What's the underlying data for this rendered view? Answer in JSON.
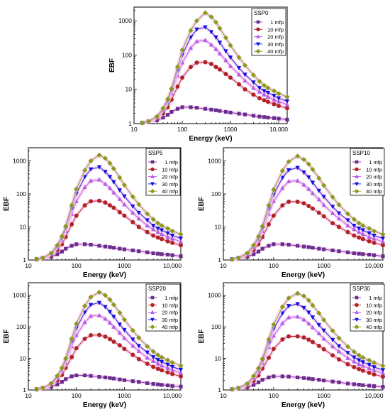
{
  "figure": {
    "background": "#ffffff"
  },
  "common": {
    "type": "line",
    "xlabel": "Energy (keV)",
    "ylabel": "EBF",
    "xscale": "log",
    "yscale": "log",
    "xlim": [
      10,
      15000
    ],
    "ylim": [
      1,
      2500
    ],
    "x_ticks": [
      10,
      100,
      1000,
      10000
    ],
    "x_tick_labels": [
      "10",
      "100",
      "1000",
      "10,000"
    ],
    "y_ticks": [
      1,
      10,
      100,
      1000
    ],
    "y_tick_labels": [
      "1",
      "10",
      "100",
      "1000"
    ],
    "legend_position": "top-right",
    "energies": [
      15,
      20,
      30,
      40,
      50,
      60,
      80,
      100,
      150,
      200,
      300,
      400,
      500,
      600,
      800,
      1000,
      1500,
      2000,
      3000,
      4000,
      5000,
      6000,
      8000,
      10000,
      15000
    ],
    "series_style": [
      {
        "name": "1 mfp",
        "color": "#6a2c8e",
        "marker": "square"
      },
      {
        "name": "10 mfp",
        "color": "#b22222",
        "marker": "circle"
      },
      {
        "name": "20 mfp",
        "color": "#b45ae6",
        "marker": "triangle-up"
      },
      {
        "name": "30 mfp",
        "color": "#1010e0",
        "marker": "triangle-down"
      },
      {
        "name": "40 mfp",
        "color": "#8b9a1a",
        "marker": "diamond"
      }
    ]
  },
  "chart_data": [
    {
      "type": "line",
      "title": "SSP0",
      "xlabel": "Energy (keV)",
      "ylabel": "EBF",
      "x": [
        15,
        20,
        30,
        40,
        50,
        60,
        80,
        100,
        150,
        200,
        300,
        400,
        500,
        600,
        800,
        1000,
        1500,
        2000,
        3000,
        4000,
        5000,
        6000,
        8000,
        10000,
        15000
      ],
      "series": [
        {
          "name": "1 mfp",
          "values": [
            1.05,
            1.1,
            1.25,
            1.5,
            1.8,
            2.2,
            2.7,
            3.0,
            3.0,
            2.9,
            2.7,
            2.55,
            2.45,
            2.35,
            2.2,
            2.1,
            1.95,
            1.85,
            1.7,
            1.6,
            1.55,
            1.5,
            1.45,
            1.4,
            1.3
          ]
        },
        {
          "name": "10 mfp",
          "values": [
            1.05,
            1.15,
            1.4,
            2.0,
            3.0,
            5.0,
            12,
            22,
            45,
            60,
            62,
            55,
            45,
            38,
            28,
            22,
            14,
            10,
            7,
            5.5,
            4.8,
            4.3,
            3.7,
            3.3,
            2.8
          ]
        },
        {
          "name": "20 mfp",
          "values": [
            1.05,
            1.15,
            1.5,
            2.4,
            4.0,
            7.5,
            25,
            60,
            160,
            250,
            270,
            200,
            150,
            110,
            70,
            48,
            27,
            18,
            11,
            8.5,
            7,
            6,
            5,
            4.4,
            3.6
          ]
        },
        {
          "name": "30 mfp",
          "values": [
            1.05,
            1.15,
            1.55,
            2.6,
            4.6,
            9.0,
            35,
            100,
            330,
            560,
            650,
            470,
            330,
            230,
            130,
            85,
            42,
            27,
            16,
            11,
            9,
            8,
            6.5,
            5.5,
            4.5
          ]
        },
        {
          "name": "40 mfp",
          "values": [
            1.05,
            1.15,
            1.6,
            2.8,
            5.2,
            10.5,
            45,
            140,
            520,
            1000,
            1700,
            1300,
            900,
            600,
            320,
            190,
            85,
            50,
            26,
            17,
            13,
            11,
            9,
            7.5,
            6
          ]
        }
      ]
    },
    {
      "type": "line",
      "title": "SSP5",
      "xlabel": "Energy (keV)",
      "ylabel": "EBF",
      "x": [
        15,
        20,
        30,
        40,
        50,
        60,
        80,
        100,
        150,
        200,
        300,
        400,
        500,
        600,
        800,
        1000,
        1500,
        2000,
        3000,
        4000,
        5000,
        6000,
        8000,
        10000,
        15000
      ],
      "series": [
        {
          "name": "1 mfp",
          "values": [
            1.05,
            1.1,
            1.25,
            1.5,
            1.8,
            2.2,
            2.7,
            3.0,
            3.0,
            2.9,
            2.7,
            2.55,
            2.45,
            2.35,
            2.2,
            2.1,
            1.95,
            1.85,
            1.7,
            1.6,
            1.55,
            1.5,
            1.45,
            1.4,
            1.3
          ]
        },
        {
          "name": "10 mfp",
          "values": [
            1.05,
            1.15,
            1.4,
            2.0,
            3.0,
            5.0,
            12,
            22,
            45,
            60,
            62,
            55,
            45,
            38,
            28,
            22,
            14,
            10,
            7,
            5.5,
            4.8,
            4.3,
            3.7,
            3.3,
            2.8
          ]
        },
        {
          "name": "20 mfp",
          "values": [
            1.05,
            1.15,
            1.5,
            2.4,
            4.0,
            7.5,
            25,
            60,
            160,
            250,
            270,
            200,
            150,
            110,
            70,
            48,
            27,
            18,
            11,
            8.5,
            7,
            6,
            5,
            4.4,
            3.6
          ]
        },
        {
          "name": "30 mfp",
          "values": [
            1.05,
            1.15,
            1.55,
            2.6,
            4.6,
            9.0,
            35,
            100,
            330,
            560,
            650,
            470,
            330,
            230,
            130,
            85,
            42,
            27,
            16,
            11,
            9,
            8,
            6.5,
            5.5,
            4.5
          ]
        },
        {
          "name": "40 mfp",
          "values": [
            1.05,
            1.15,
            1.6,
            2.8,
            5.2,
            10.5,
            45,
            140,
            520,
            1000,
            1500,
            1200,
            850,
            580,
            310,
            185,
            82,
            48,
            25,
            17,
            13,
            11,
            9,
            7.5,
            6
          ]
        }
      ]
    },
    {
      "type": "line",
      "title": "SSP10",
      "xlabel": "Energy (keV)",
      "ylabel": "EBF",
      "x": [
        15,
        20,
        30,
        40,
        50,
        60,
        80,
        100,
        150,
        200,
        300,
        400,
        500,
        600,
        800,
        1000,
        1500,
        2000,
        3000,
        4000,
        5000,
        6000,
        8000,
        10000,
        15000
      ],
      "series": [
        {
          "name": "1 mfp",
          "values": [
            1.05,
            1.1,
            1.25,
            1.5,
            1.8,
            2.2,
            2.7,
            3.0,
            3.0,
            2.9,
            2.7,
            2.55,
            2.45,
            2.35,
            2.2,
            2.1,
            1.95,
            1.85,
            1.7,
            1.6,
            1.55,
            1.5,
            1.45,
            1.4,
            1.3
          ]
        },
        {
          "name": "10 mfp",
          "values": [
            1.05,
            1.15,
            1.4,
            2.0,
            3.0,
            5.0,
            12,
            22,
            45,
            58,
            58,
            52,
            43,
            36,
            27,
            21,
            13,
            10,
            7,
            5.5,
            4.8,
            4.3,
            3.7,
            3.3,
            2.8
          ]
        },
        {
          "name": "20 mfp",
          "values": [
            1.05,
            1.15,
            1.5,
            2.4,
            4.0,
            7.5,
            25,
            60,
            150,
            240,
            250,
            190,
            140,
            105,
            68,
            46,
            26,
            18,
            11,
            8.5,
            7,
            6,
            5,
            4.4,
            3.6
          ]
        },
        {
          "name": "30 mfp",
          "values": [
            1.05,
            1.15,
            1.55,
            2.6,
            4.6,
            9.0,
            35,
            95,
            310,
            530,
            620,
            450,
            320,
            220,
            125,
            82,
            41,
            26,
            16,
            11,
            9,
            8,
            6.5,
            5.5,
            4.5
          ]
        },
        {
          "name": "40 mfp",
          "values": [
            1.05,
            1.15,
            1.6,
            2.8,
            5.2,
            10.5,
            45,
            135,
            500,
            950,
            1400,
            1100,
            800,
            550,
            300,
            180,
            80,
            47,
            25,
            17,
            13,
            11,
            9,
            7.5,
            6
          ]
        }
      ]
    },
    {
      "type": "line",
      "title": "SSP20",
      "xlabel": "Energy (keV)",
      "ylabel": "EBF",
      "x": [
        15,
        20,
        30,
        40,
        50,
        60,
        80,
        100,
        150,
        200,
        300,
        400,
        500,
        600,
        800,
        1000,
        1500,
        2000,
        3000,
        4000,
        5000,
        6000,
        8000,
        10000,
        15000
      ],
      "series": [
        {
          "name": "1 mfp",
          "values": [
            1.05,
            1.1,
            1.25,
            1.5,
            1.8,
            2.2,
            2.7,
            2.9,
            2.9,
            2.8,
            2.6,
            2.5,
            2.4,
            2.3,
            2.15,
            2.05,
            1.9,
            1.8,
            1.65,
            1.55,
            1.5,
            1.45,
            1.4,
            1.35,
            1.28
          ]
        },
        {
          "name": "10 mfp",
          "values": [
            1.05,
            1.15,
            1.4,
            2.0,
            3.0,
            5.0,
            11,
            21,
            42,
            54,
            55,
            49,
            41,
            34,
            26,
            20,
            13,
            9.5,
            6.8,
            5.4,
            4.7,
            4.2,
            3.6,
            3.2,
            2.7
          ]
        },
        {
          "name": "20 mfp",
          "values": [
            1.05,
            1.15,
            1.5,
            2.4,
            4.0,
            7.2,
            24,
            55,
            140,
            220,
            230,
            180,
            135,
            100,
            65,
            44,
            25,
            17,
            10.5,
            8.2,
            6.8,
            5.9,
            4.9,
            4.3,
            3.5
          ]
        },
        {
          "name": "30 mfp",
          "values": [
            1.05,
            1.15,
            1.55,
            2.6,
            4.5,
            8.8,
            33,
            90,
            290,
            500,
            580,
            430,
            300,
            210,
            120,
            80,
            40,
            25,
            15.5,
            11,
            9,
            7.8,
            6.4,
            5.4,
            4.4
          ]
        },
        {
          "name": "40 mfp",
          "values": [
            1.05,
            1.15,
            1.6,
            2.8,
            5.0,
            10,
            42,
            125,
            460,
            880,
            1250,
            1000,
            730,
            500,
            280,
            170,
            77,
            45,
            24,
            16.5,
            12.8,
            10.8,
            8.8,
            7.4,
            5.9
          ]
        }
      ]
    },
    {
      "type": "line",
      "title": "SSP30",
      "xlabel": "Energy (keV)",
      "ylabel": "EBF",
      "x": [
        15,
        20,
        30,
        40,
        50,
        60,
        80,
        100,
        150,
        200,
        300,
        400,
        500,
        600,
        800,
        1000,
        1500,
        2000,
        3000,
        4000,
        5000,
        6000,
        8000,
        10000,
        15000
      ],
      "series": [
        {
          "name": "1 mfp",
          "values": [
            1.05,
            1.1,
            1.22,
            1.45,
            1.75,
            2.1,
            2.5,
            2.7,
            2.7,
            2.65,
            2.5,
            2.4,
            2.3,
            2.2,
            2.1,
            2.0,
            1.85,
            1.75,
            1.6,
            1.52,
            1.47,
            1.42,
            1.37,
            1.33,
            1.25
          ]
        },
        {
          "name": "10 mfp",
          "values": [
            1.05,
            1.15,
            1.38,
            1.95,
            2.9,
            4.8,
            10.5,
            20,
            40,
            50,
            50,
            46,
            39,
            33,
            25,
            19.5,
            12.5,
            9.3,
            6.6,
            5.3,
            4.6,
            4.1,
            3.5,
            3.1,
            2.65
          ]
        },
        {
          "name": "20 mfp",
          "values": [
            1.05,
            1.15,
            1.48,
            2.35,
            3.9,
            7.0,
            23,
            52,
            130,
            200,
            210,
            170,
            128,
            96,
            62,
            42,
            24,
            16.5,
            10.2,
            8,
            6.6,
            5.8,
            4.8,
            4.2,
            3.45
          ]
        },
        {
          "name": "30 mfp",
          "values": [
            1.05,
            1.15,
            1.52,
            2.55,
            4.4,
            8.5,
            31,
            85,
            270,
            460,
            530,
            400,
            285,
            200,
            115,
            77,
            39,
            24.5,
            15,
            10.8,
            8.8,
            7.6,
            6.3,
            5.3,
            4.3
          ]
        },
        {
          "name": "40 mfp",
          "values": [
            1.05,
            1.15,
            1.58,
            2.75,
            4.9,
            9.8,
            40,
            118,
            430,
            820,
            1150,
            950,
            690,
            480,
            270,
            165,
            75,
            44,
            23.5,
            16.2,
            12.6,
            10.6,
            8.7,
            7.3,
            5.8
          ]
        }
      ]
    }
  ]
}
